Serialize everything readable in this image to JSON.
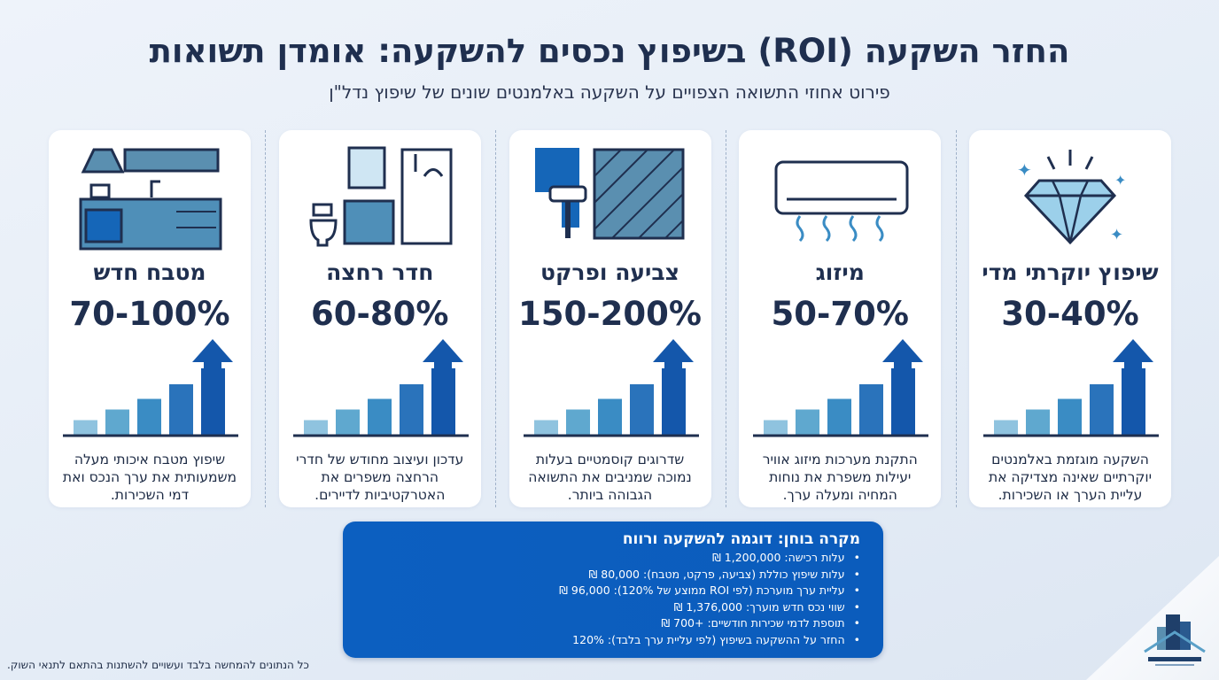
{
  "header": {
    "title": "החזר השקעה (ROI) בשיפוץ נכסים להשקעה: אומדן תשואות",
    "subtitle": "פירוט אחוזי התשואה הצפויים על השקעה באלמנטים שונים של שיפוץ נדל\"ן"
  },
  "colors": {
    "bars": [
      "#8fc3df",
      "#5fa8cf",
      "#3a8cc4",
      "#2a73bb",
      "#1457ab"
    ],
    "accent": "#0b5cbc",
    "title": "#1f2f4f"
  },
  "cards": [
    {
      "icon": "diamond-icon",
      "name": "שיפוץ יוקרתי מדי",
      "roi": "30-40%",
      "description": "השקעה מוגזמת באלמנטים יוקרתיים שאינה מצדיקה את עליית הערך או השכירות."
    },
    {
      "icon": "air-conditioner-icon",
      "name": "מיזוג",
      "roi": "50-70%",
      "description": "התקנת מערכות מיזוג אוויר יעילות משפרת את נוחות המחיה ומעלה ערך."
    },
    {
      "icon": "paint-parquet-icon",
      "name": "צביעה ופרקט",
      "roi": "150-200%",
      "description": "שדרוגים קוסמטיים בעלות נמוכה שמניבים את התשואה הגבוהה ביותר."
    },
    {
      "icon": "bathroom-icon",
      "name": "חדר רחצה",
      "roi": "60-80%",
      "description": "עדכון ועיצוב מחודש של חדרי הרחצה משפרים את האטרקטיביות לדיירים."
    },
    {
      "icon": "kitchen-icon",
      "name": "מטבח חדש",
      "roi": "70-100%",
      "description": "שיפוץ מטבח איכותי מעלה משמעותית את ערך הנכס ואת דמי השכירות."
    }
  ],
  "case_study": {
    "title": "מקרה בוחן: דוגמה להשקעה ורווח",
    "items": [
      "עלות רכישה: 1,200,000 ₪",
      "עלות שיפוץ כוללת (צביעה, פרקט, מטבח): 80,000 ₪",
      "עליית ערך מוערכת (לפי ROI ממוצע של 120%): 96,000 ₪",
      "שווי נכס חדש מוערך: 1,376,000 ₪",
      "תוספת לדמי שכירות חודשיים: +700 ₪",
      "החזר על ההשקעה בשיפוץ (לפי עליית ערך בלבד): 120%"
    ]
  },
  "footnote": "כל הנתונים להמחשה בלבד ועשויים להשתנות בהתאם לתנאי השוק."
}
